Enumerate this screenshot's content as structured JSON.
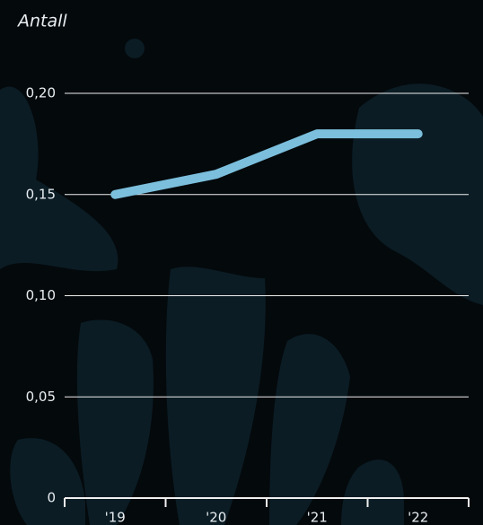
{
  "chart_data": {
    "type": "line",
    "y_label": "Antall",
    "categories": [
      "'19",
      "'20",
      "'21",
      "'22"
    ],
    "series": [
      {
        "name": "Antall",
        "color": "#7bbfdc",
        "values": [
          0.15,
          0.16,
          0.18,
          0.18
        ]
      }
    ],
    "ylim": [
      0,
      0.2
    ],
    "yticks": [
      0,
      {
        "value": 0.05,
        "label": "0,05"
      },
      {
        "value": 0.1,
        "label": "0,10"
      },
      {
        "value": 0.15,
        "label": "0,15"
      },
      {
        "value": 0.2,
        "label": "0,20"
      }
    ],
    "grid": true
  }
}
